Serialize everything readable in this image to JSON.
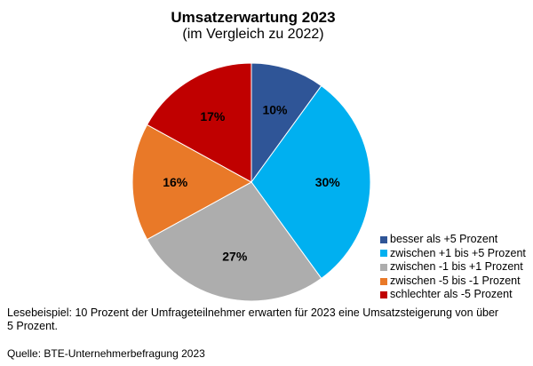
{
  "chart_data": {
    "type": "pie",
    "title": "Umsatzerwartung 2023",
    "subtitle": "(im Vergleich zu 2022)",
    "start_angle": "12 o'clock",
    "direction": "clockwise",
    "legend_position": "bottom-right",
    "slices": [
      {
        "name": "besser als +5 Prozent",
        "value": 10,
        "label": "10%",
        "color": "#2F5597"
      },
      {
        "name": "zwischen +1 bis +5 Prozent",
        "value": 30,
        "label": "30%",
        "color": "#00B0F0"
      },
      {
        "name": "zwischen -1 bis +1 Prozent",
        "value": 27,
        "label": "27%",
        "color": "#ADADAD"
      },
      {
        "name": "zwischen -5 bis -1 Prozent",
        "value": 16,
        "label": "16%",
        "color": "#E97928"
      },
      {
        "name": "schlechter als -5 Prozent",
        "value": 17,
        "label": "17%",
        "color": "#C00000"
      }
    ]
  },
  "note": "Lesebeispiel: 10 Prozent der Umfrageteilnehmer erwarten für 2023 eine Umsatzsteigerung von über 5 Prozent.",
  "source": "Quelle: BTE-Unternehmerbefragung 2023"
}
